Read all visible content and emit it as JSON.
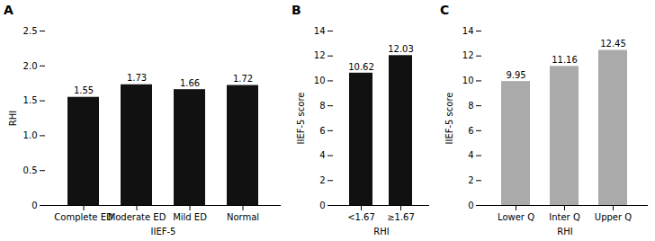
{
  "chart_data": [
    {
      "type": "bar",
      "title": "A",
      "categories": [
        "Complete ED",
        "Moderate ED",
        "Mild ED",
        "Normal"
      ],
      "values": [
        1.55,
        1.73,
        1.66,
        1.72
      ],
      "color": "#111111",
      "xlabel": "IIEF-5",
      "ylabel": "RHI",
      "ylim": [
        0,
        2.5
      ],
      "yticks": [
        0,
        0.5,
        {
          "value": 1.0,
          "label": "1.0"
        },
        1.5,
        {
          "value": 2.0,
          "label": "2.0"
        },
        2.5
      ],
      "grid": false,
      "data_labels": true
    },
    {
      "type": "bar",
      "title": "B",
      "categories": [
        "<1.67",
        "≥1.67"
      ],
      "values": [
        10.62,
        12.03
      ],
      "color": "#111111",
      "xlabel": "RHI",
      "ylabel": "IIEF-5 score",
      "ylim": [
        0,
        14
      ],
      "yticks": [
        0,
        2,
        4,
        6,
        8,
        10,
        12,
        14
      ],
      "grid": false,
      "data_labels": true
    },
    {
      "type": "bar",
      "title": "C",
      "categories": [
        "Lower Q",
        "Inter Q",
        "Upper Q"
      ],
      "values": [
        9.95,
        11.16,
        12.45
      ],
      "color": "#aaaaaa",
      "xlabel": "RHI",
      "ylabel": "IIEF-5 score",
      "ylim": [
        0,
        14
      ],
      "yticks": [
        0,
        2,
        4,
        6,
        8,
        10,
        12,
        14
      ],
      "grid": false,
      "data_labels": true
    }
  ]
}
